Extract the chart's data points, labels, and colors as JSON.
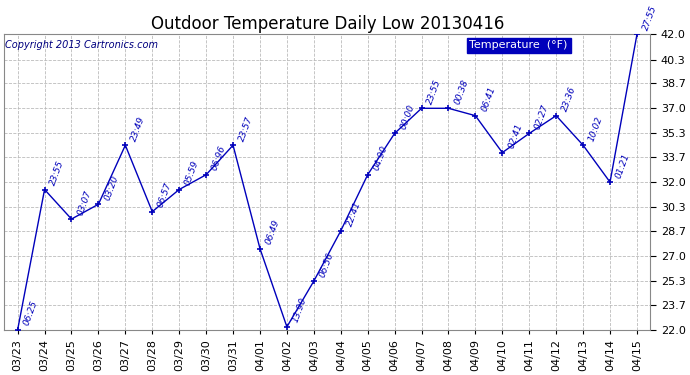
{
  "title": "Outdoor Temperature Daily Low 20130416",
  "copyright": "Copyright 2013 Cartronics.com",
  "legend_label": "Temperature  (°F)",
  "dates": [
    "03/23",
    "03/24",
    "03/25",
    "03/26",
    "03/27",
    "03/28",
    "03/29",
    "03/30",
    "03/31",
    "04/01",
    "04/02",
    "04/03",
    "04/04",
    "04/05",
    "04/06",
    "04/07",
    "04/08",
    "04/09",
    "04/10",
    "04/11",
    "04/12",
    "04/13",
    "04/14",
    "04/15"
  ],
  "temps": [
    22.0,
    31.5,
    29.5,
    30.5,
    34.5,
    30.0,
    31.5,
    32.5,
    34.5,
    27.5,
    22.2,
    25.3,
    28.7,
    32.5,
    35.3,
    37.0,
    37.0,
    36.5,
    34.0,
    35.3,
    36.5,
    34.5,
    32.0,
    42.0
  ],
  "point_labels": [
    "06:25",
    "23:55",
    "03:07",
    "03:20",
    "23:49",
    "06:57",
    "05:59",
    "06:96",
    "23:57",
    "06:49",
    "13:90",
    "06:56",
    "22:41",
    "04:90",
    "00:00",
    "23:55",
    "00:38",
    "06:41",
    "02:41",
    "02:27",
    "23:36",
    "10:02",
    "01:21",
    "27:55"
  ],
  "ylim": [
    22.0,
    42.0
  ],
  "yticks": [
    22.0,
    23.7,
    25.3,
    27.0,
    28.7,
    30.3,
    32.0,
    33.7,
    35.3,
    37.0,
    38.7,
    40.3,
    42.0
  ],
  "line_color": "#0000bb",
  "marker_color": "#0000bb",
  "grid_color": "#bbbbbb",
  "bg_color": "#ffffff",
  "legend_bg": "#0000bb",
  "legend_text_color": "#ffffff",
  "title_color": "#000000",
  "copyright_color": "#000080",
  "label_color": "#0000bb",
  "title_fontsize": 12,
  "label_fontsize": 6.5,
  "tick_fontsize": 8,
  "copyright_fontsize": 7
}
